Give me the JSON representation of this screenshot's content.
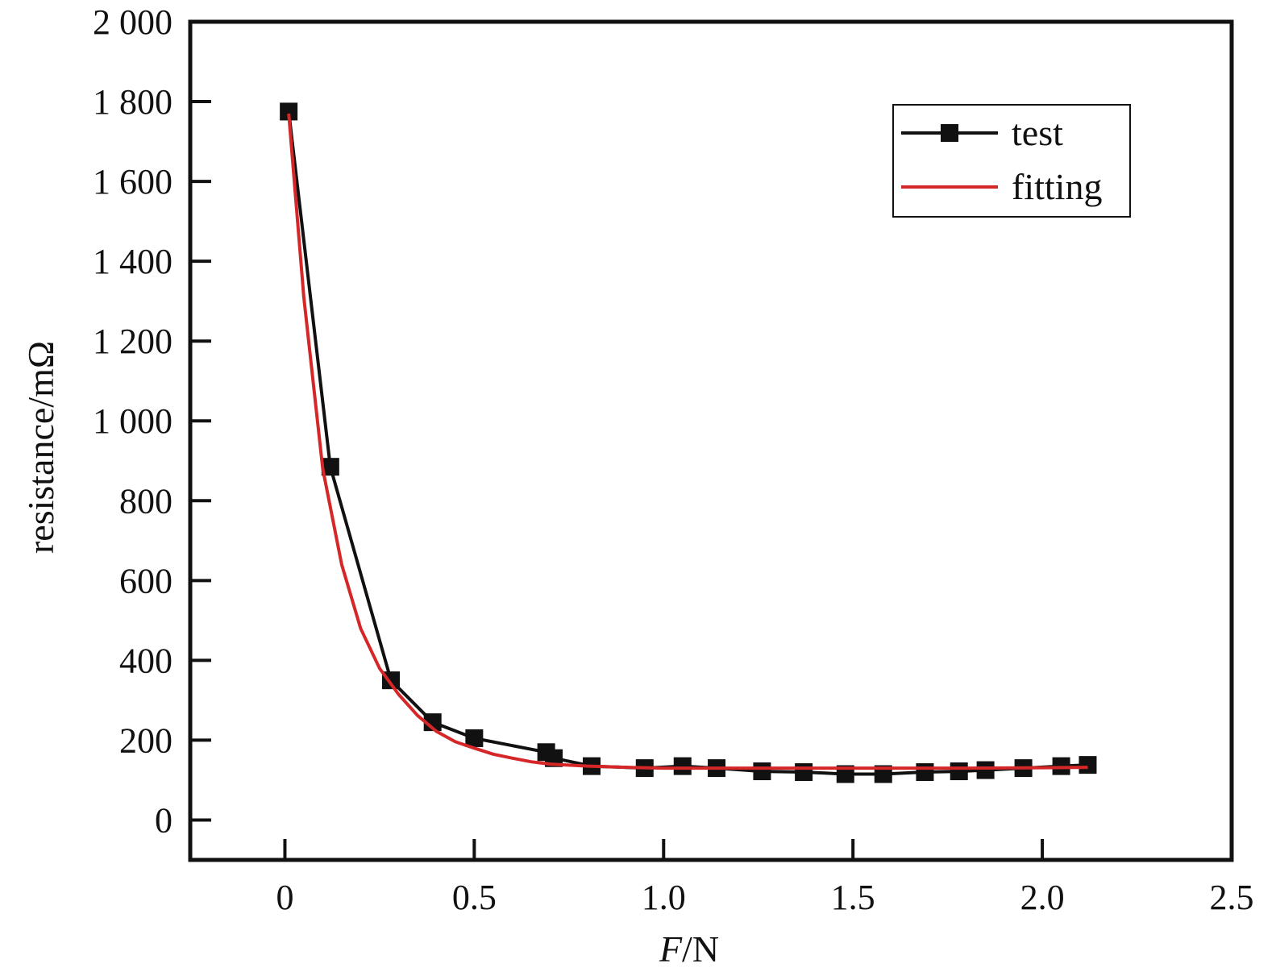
{
  "chart_data": {
    "type": "line",
    "xlabel_italic": "F",
    "xlabel_rest": "/N",
    "ylabel": "resistance/mΩ",
    "xlim": [
      -0.25,
      2.5
    ],
    "ylim": [
      -100,
      2000
    ],
    "x_ticks": [
      0,
      0.5,
      1.0,
      1.5,
      2.0,
      2.5
    ],
    "x_tick_labels": [
      "0",
      "0.5",
      "1.0",
      "1.5",
      "2.0",
      "2.5"
    ],
    "y_ticks": [
      0,
      200,
      400,
      600,
      800,
      1000,
      1200,
      1400,
      1600,
      1800,
      2000
    ],
    "y_tick_labels": [
      "0",
      "200",
      "400",
      "600",
      "800",
      "1 000",
      "1 200",
      "1 400",
      "1 600",
      "1 800",
      "2 000"
    ],
    "legend_position": "top-right",
    "series": [
      {
        "name": "test",
        "color": "#111111",
        "marker": "square",
        "x": [
          0.01,
          0.12,
          0.28,
          0.39,
          0.5,
          0.69,
          0.71,
          0.81,
          0.95,
          1.05,
          1.14,
          1.26,
          1.37,
          1.48,
          1.58,
          1.69,
          1.78,
          1.85,
          1.95,
          2.05,
          2.12
        ],
        "y": [
          1775,
          885,
          350,
          245,
          205,
          170,
          155,
          135,
          130,
          135,
          130,
          122,
          120,
          115,
          115,
          120,
          122,
          125,
          130,
          135,
          138
        ]
      },
      {
        "name": "fitting",
        "color": "#d62728",
        "marker": "none",
        "x": [
          0.01,
          0.05,
          0.1,
          0.15,
          0.2,
          0.25,
          0.3,
          0.35,
          0.4,
          0.45,
          0.5,
          0.55,
          0.6,
          0.65,
          0.7,
          0.8,
          0.9,
          1.0,
          1.2,
          1.4,
          1.6,
          1.8,
          2.0,
          2.12
        ],
        "y": [
          1770,
          1310,
          880,
          640,
          480,
          380,
          315,
          262,
          222,
          196,
          180,
          165,
          155,
          146,
          140,
          135,
          132,
          130,
          130,
          130,
          130,
          130,
          131,
          132
        ]
      }
    ]
  }
}
